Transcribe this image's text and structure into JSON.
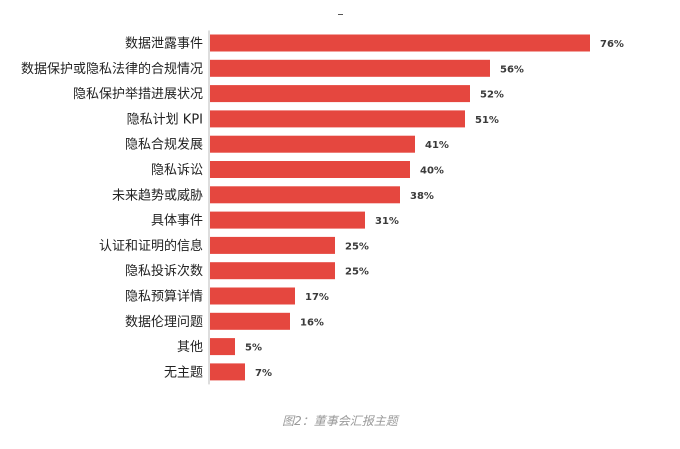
{
  "chart_data": {
    "type": "bar",
    "orientation": "horizontal",
    "categories": [
      "数据泄露事件",
      "数据保护或隐私法律的合规情况",
      "隐私保护举措进展状况",
      "隐私计划 KPI",
      "隐私合规发展",
      "隐私诉讼",
      "未来趋势或威胁",
      "具体事件",
      "认证和证明的信息",
      "隐私投诉次数",
      "隐私预算详情",
      "数据伦理问题",
      "其他",
      "无主题"
    ],
    "values": [
      76,
      56,
      52,
      51,
      41,
      40,
      38,
      31,
      25,
      25,
      17,
      16,
      5,
      7
    ],
    "value_labels": [
      "76%",
      "56%",
      "52%",
      "51%",
      "41%",
      "40%",
      "38%",
      "31%",
      "25%",
      "25%",
      "17%",
      "16%",
      "5%",
      "7%"
    ],
    "unit": "%",
    "bar_color": "#e5473f",
    "axis_line": true,
    "grid": false,
    "legend": "none"
  },
  "caption": "图2：董事会汇报主题"
}
